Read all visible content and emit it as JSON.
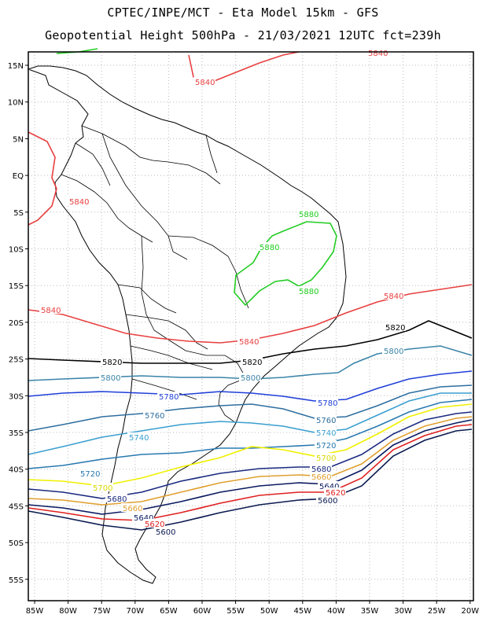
{
  "header": {
    "line1": "CPTEC/INPE/MCT -  Eta Model 15km - GFS",
    "line2": "Geopotential Height 500hPa - 21/03/2021 12UTC fct=239h"
  },
  "axes": {
    "lat_labels": [
      "15N",
      "10N",
      "5N",
      "EQ",
      "5S",
      "10S",
      "15S",
      "20S",
      "25S",
      "30S",
      "35S",
      "40S",
      "45S",
      "50S",
      "55S"
    ],
    "lon_labels": [
      "85W",
      "80W",
      "75W",
      "70W",
      "65W",
      "60W",
      "55W",
      "50W",
      "45W",
      "40W",
      "35W",
      "30W",
      "25W",
      "20W"
    ]
  },
  "contour_labels": {
    "c5880_a": "5880",
    "c5880_b": "5880",
    "c5880_c": "5880",
    "c5840_top": "5840",
    "c5840_nw": "5840",
    "c5840_tr": "5840",
    "c5840_w": "5840",
    "c5840_c": "5840",
    "c5840_e": "5840",
    "c5820_c": "5820",
    "c5820_b": "5820",
    "c5820_e": "5820",
    "c5800_w": "5800",
    "c5800_c": "5800",
    "c5800_e": "5800",
    "c5780_w": "5780",
    "c5780_e": "5780",
    "c5760_w": "5760",
    "c5760_e": "5760",
    "c5740_w": "5740",
    "c5740_e": "5740",
    "c5720_w": "5720",
    "c5720_e": "5720",
    "c5700_w": "5700",
    "c5700_e": "5700",
    "c5680_w": "5680",
    "c5680_e": "5680",
    "c5660_w": "5660",
    "c5660_e": "5660",
    "c5640_w": "5640",
    "c5640_e": "5640",
    "c5620_w": "5620",
    "c5620_e": "5620",
    "c5600_w": "5600",
    "c5600_e": "5600"
  },
  "colors": {
    "c5880": "#22cc22",
    "c5840": "#e84040",
    "c5820": "#000000",
    "c5800": "#3a84a8",
    "c5780": "#1f3fd8",
    "c5760": "#2e6fa0",
    "c5740": "#3a9fd0",
    "c5720": "#2a7ab0",
    "c5700": "#f0f000",
    "c5680": "#1a2a80",
    "c5660": "#e0a030",
    "c5640": "#0a1a60",
    "c5620": "#e02020",
    "c5600": "#0a1a50"
  }
}
